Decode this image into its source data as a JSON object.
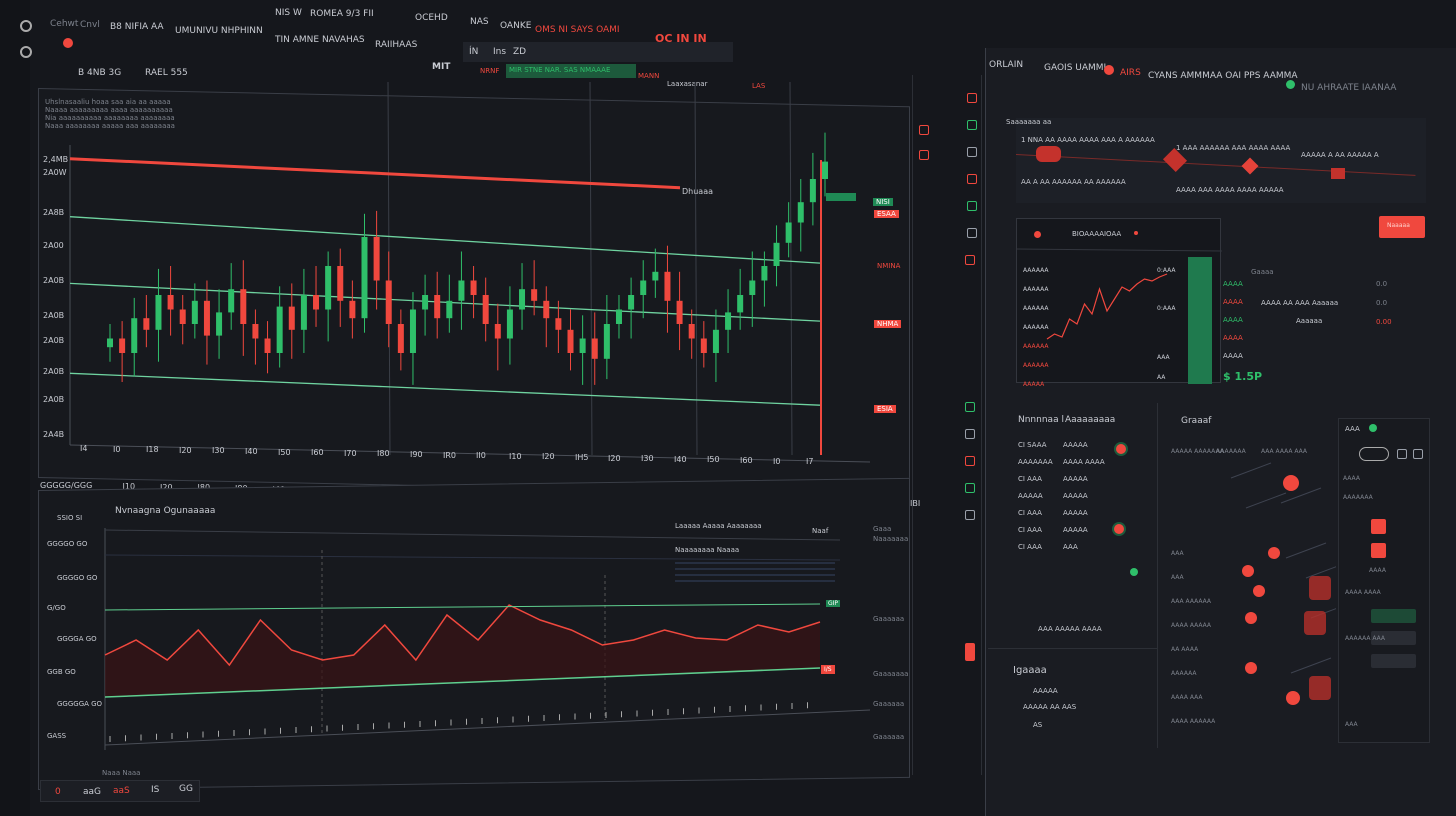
{
  "colors": {
    "bg": "#15171c",
    "up": "#2fbf6a",
    "down": "#f0483e",
    "grid": "#3a3e47",
    "accent_red": "#f0483e",
    "accent_green": "#1f8a55"
  },
  "topbar": {
    "row1": [
      "NIS W",
      "ROMEA 9/3 FII",
      "OCEHD",
      "NAS",
      "OANKE",
      "OMS NI SAYS OAMI",
      "OC IN IN"
    ],
    "row2": [
      "Cehwt",
      "Cnvl",
      "B8 NIFIA AA",
      "UMUNIVU NHPHINN",
      "TIN AMNE NAVAHAS",
      "RAIIHAAS"
    ],
    "symbol_box": [
      "B 4NB 3G",
      "RAEL 555"
    ],
    "ticker_label": "MIT",
    "ticker_red": "NRNF",
    "ticker_green": "MIR STNE NAR. SAS NMAAAE",
    "ticker_red2": "MANN",
    "tab_small": [
      "ÍN",
      "Ins",
      "ZD"
    ],
    "right_text": "Laaxasanar",
    "right_red": "LAS"
  },
  "main_chart": {
    "notes": [
      "Uhslnasaaliu hoaa saa aia aa aaaaa",
      "Naaaa aaaaaaaaa aaaa aaaaaaaaaa",
      "Nia aaaaaaaaaa aaaaaaaa aaaaaaaa",
      "Naaa aaaaaaaa aaaaa aaa aaaaaaaa"
    ],
    "line_label": "Dhuaaa",
    "right_tags": [
      {
        "text": "NISI",
        "color": "green"
      },
      {
        "text": "ESAA",
        "color": "red"
      },
      {
        "text": "NMINA",
        "color": "red"
      },
      {
        "text": "NHMA",
        "color": "red"
      },
      {
        "text": "ESIA",
        "color": "red"
      }
    ]
  },
  "chart_data": [
    {
      "type": "candlestick",
      "yticks": [
        "2,4MB",
        "2A0W",
        "2A8B",
        "2A00",
        "2A0B",
        "2A0B",
        "2A0B",
        "2A0B",
        "2A0B",
        "2A4B"
      ],
      "xticks": [
        "I4",
        "I0",
        "I18",
        "I20",
        "I30",
        "I40",
        "I50",
        "I60",
        "I70",
        "I80",
        "I90",
        "IR0",
        "II0",
        "I10",
        "I20",
        "IH5",
        "I20",
        "I30",
        "I40",
        "I50",
        "I60",
        "I0",
        "I7"
      ],
      "ylim": [
        0,
        100
      ],
      "closes": [
        35,
        30,
        42,
        38,
        50,
        45,
        40,
        48,
        36,
        44,
        52,
        40,
        35,
        30,
        46,
        38,
        50,
        45,
        60,
        48,
        42,
        70,
        55,
        40,
        30,
        45,
        50,
        42,
        48,
        55,
        50,
        40,
        35,
        45,
        52,
        48,
        42,
        38,
        30,
        35,
        28,
        40,
        45,
        50,
        55,
        58,
        48,
        40,
        35,
        30,
        38,
        44,
        50,
        55,
        60,
        68,
        75,
        82,
        90,
        96
      ],
      "resistance_line": [
        97,
        87
      ],
      "channel_lines": [
        [
          77,
          61
        ],
        [
          54,
          41
        ],
        [
          23,
          12
        ]
      ]
    },
    {
      "type": "area",
      "title": "Nvnaagna Ogunaaaaa",
      "yticks": [
        "SSIO SI",
        "GGGGO GO",
        "GGGGO GO",
        "G/GO",
        "GGGGA GO",
        "GGB GO",
        "GGGGGA GO",
        "GASS"
      ],
      "ylim": [
        0,
        100
      ],
      "values": [
        45,
        60,
        40,
        70,
        35,
        80,
        50,
        40,
        45,
        75,
        40,
        85,
        60,
        95,
        80,
        70,
        55,
        60,
        70,
        62,
        60,
        75,
        68,
        78
      ],
      "upper_line": [
        90,
        96
      ],
      "lower_line": [
        3,
        32
      ],
      "legend_title": "Laaaaa Aaaaa Aaaaaaaa",
      "legend_sub": "Naaaaaaaa Naaaa",
      "legend_tag": "Naaf",
      "right_labels": [
        "Gaaa",
        "Naaaaaaa",
        "Gaaaaaa",
        "Gaaaaaaa",
        "Gaaaaaa",
        "Gaaaaaa"
      ],
      "upper_tag": "GIP",
      "lower_tag": "I/S"
    }
  ],
  "time_axis": [
    "GGGGG/GGG",
    "I10",
    "I20",
    "I80",
    "I80",
    "I40",
    "I50",
    "I80",
    "I90",
    "IZ0",
    "IS0",
    "IB0",
    "IB0",
    "IR0",
    "I0",
    "I50",
    "I20",
    "I20",
    "I70",
    "I80",
    "GGG",
    "IRG",
    "IBI"
  ],
  "bottom_toolbar": {
    "label": "Naaa Naaa",
    "buttons": [
      "0",
      "aaG",
      "aaS",
      "IS",
      "GG"
    ]
  },
  "side_tools": [
    "chart-icon",
    "draw-icon",
    "magnet-icon",
    "ruler-icon",
    "alert-icon",
    "text-icon",
    "layers-icon",
    "lock-icon",
    "trash-icon",
    "eye-icon",
    "settings-icon",
    "grid-icon"
  ],
  "right_panel": {
    "header": [
      "ORLAIN",
      "GAOIS UAMMI",
      "AIRS",
      "CYANS AMMMAA OAI PPS AAMMA",
      "NU AHRAATE IAANAA"
    ],
    "strip_title": "Saaaaaaa aa",
    "strip_rows": [
      "1 NNA AA AAAA AAAA AAA A AAAAAA",
      "1 AAA AAAAAA AAA AAAA AAAA",
      "AAAAA A AA AAAAA A",
      "AA A AA AAAAAA AA AAAAAA",
      "AAAA AAA AAAA AAAA AAAAA"
    ],
    "red_button": "Naaaaa",
    "mini": {
      "title": "BIOAAAAIOAA",
      "labels": [
        "AAAAAA",
        "AAAAAA",
        "AAAAAA",
        "AAAAAA",
        "AAAAAA",
        "AAAAAA",
        "AAAAA"
      ],
      "values": [
        "0:AAA",
        "0:AAA",
        "AAA",
        "AA"
      ],
      "line": [
        10,
        15,
        12,
        30,
        25,
        45,
        35,
        60,
        38,
        50,
        62,
        58,
        65,
        70,
        68,
        72,
        75
      ]
    },
    "quote": {
      "title": "Gaaaa",
      "rows": [
        "AAAA",
        "AAAA",
        "AAAA",
        "AAAA",
        "AAAA"
      ],
      "text1": "AAAA AA AAA Aaaaaa",
      "text2": "Aaaaaa",
      "price": "$ 1.5P",
      "vals": [
        "0.0",
        "0.0",
        "0.00"
      ]
    },
    "orderbook": {
      "headers": [
        "Nnnnnaa l",
        "Aaaaaaaaa"
      ],
      "rows": [
        [
          "CI SAAA",
          "AAAAA"
        ],
        [
          "AAAAAAA",
          "AAAA AAAA"
        ],
        [
          "CI AAA",
          "AAAAA"
        ],
        [
          "AAAAA",
          "AAAAA"
        ],
        [
          "CI AAA",
          "AAAAA"
        ],
        [
          "CI AAA",
          "AAAAA"
        ],
        [
          "CI AAA",
          "AAA"
        ]
      ],
      "footer": "AAA AAAAA AAAA",
      "section": "Igaaaa",
      "sub": [
        "AAAAA",
        "AAAAA AA AAS",
        "AS"
      ]
    },
    "network": {
      "title": "Graaaf",
      "labels": [
        "AAAAA AAAAAAA",
        "AAAAAAA",
        "AAA AAAA AAA",
        "AAA",
        "AAA",
        "AAA AAAAAA",
        "AAAA AAAAA",
        "AA AAAA",
        "AAAAAA",
        "AAAA AAA",
        "AAAA AAAAAA"
      ]
    },
    "controls": {
      "title": "AAA",
      "labels": [
        "AAAA",
        "AAAAAAA",
        "AAAA",
        "AAAA AAAA",
        "AAAAAA AAA",
        "AAA"
      ]
    }
  }
}
